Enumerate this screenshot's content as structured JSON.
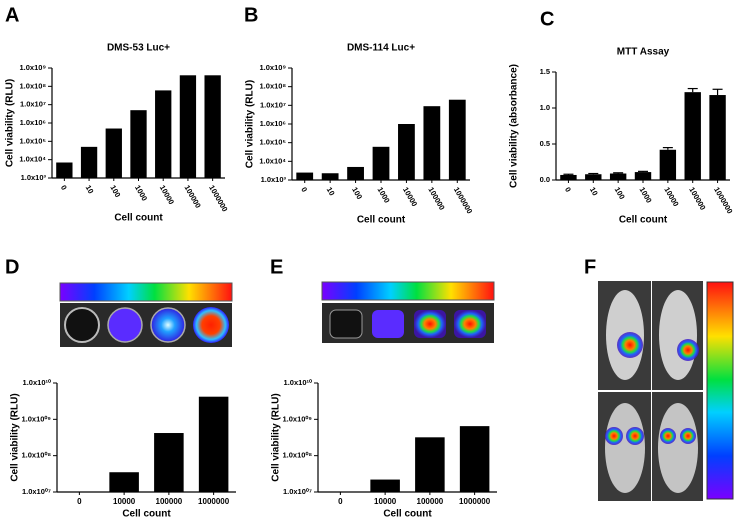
{
  "panel_labels": [
    "A",
    "B",
    "C",
    "D",
    "E",
    "F"
  ],
  "chart_data": [
    {
      "type": "bar",
      "title": "DMS-53 Luc+",
      "x_label": "Cell count",
      "y_label": "Cell viability (RLU)",
      "categories": [
        "0",
        "10",
        "100",
        "1000",
        "10000",
        "100000",
        "1000000"
      ],
      "values": [
        7000,
        50000,
        500000,
        5000000,
        60000000,
        400000000,
        400000000
      ],
      "color": "#000000",
      "log_scale": true,
      "ylim": [
        1000,
        1000000000
      ],
      "yticks": [
        {
          "value": 1000,
          "label": "1.0x10³"
        },
        {
          "value": 10000,
          "label": "1.0x10⁴"
        },
        {
          "value": 100000,
          "label": "1.0x10⁵"
        },
        {
          "value": 1000000,
          "label": "1.0x10⁶"
        },
        {
          "value": 10000000,
          "label": "1.0x10⁷"
        },
        {
          "value": 100000000,
          "label": "1.0x10⁸"
        },
        {
          "value": 1000000000,
          "label": "1.0x10⁹"
        }
      ]
    },
    {
      "type": "bar",
      "title": "DMS-114 Luc+",
      "x_label": "Cell count",
      "y_label": "Cell viability (RLU)",
      "categories": [
        "0",
        "10",
        "100",
        "1000",
        "10000",
        "100000",
        "1000000"
      ],
      "values": [
        2500,
        2300,
        5000,
        60000,
        1000000,
        9000000,
        20000000
      ],
      "color": "#000000",
      "log_scale": true,
      "ylim": [
        1000,
        1000000000
      ],
      "yticks": [
        {
          "value": 1000,
          "label": "1.0x10³"
        },
        {
          "value": 10000,
          "label": "1.0x10⁴"
        },
        {
          "value": 100000,
          "label": "1.0x10⁵"
        },
        {
          "value": 1000000,
          "label": "1.0x10⁶"
        },
        {
          "value": 10000000,
          "label": "1.0x10⁷"
        },
        {
          "value": 100000000,
          "label": "1.0x10⁸"
        },
        {
          "value": 1000000000,
          "label": "1.0x10⁹"
        }
      ]
    },
    {
      "type": "bar",
      "title": "MTT Assay",
      "x_label": "Cell count",
      "y_label": "Cell viability (absorbance)",
      "categories": [
        "0",
        "10",
        "100",
        "1000",
        "10000",
        "100000",
        "1000000"
      ],
      "values": [
        0.07,
        0.08,
        0.09,
        0.11,
        0.42,
        1.22,
        1.18
      ],
      "errors": [
        0.01,
        0.01,
        0.01,
        0.01,
        0.03,
        0.05,
        0.08
      ],
      "color": "#000000",
      "log_scale": false,
      "ylim": [
        0,
        1.5
      ],
      "yticks": [
        {
          "value": 0,
          "label": "0.0"
        },
        0.5,
        {
          "value": 1,
          "label": "1.0"
        },
        1.5
      ]
    },
    {
      "type": "bar",
      "x_label": "Cell count",
      "y_label": "Cell viability (RLU)",
      "categories": [
        "0",
        "10000",
        "100000",
        "1000000"
      ],
      "values": [
        null,
        35000000,
        420000000,
        4200000000
      ],
      "color": "#000000",
      "log_scale": true,
      "ylim": [
        10000000,
        10000000000
      ],
      "yticks": [
        {
          "value": 10000000,
          "label": "1.0x10⁰⁷"
        },
        {
          "value": 100000000,
          "label": "1.0x10⁰⁸"
        },
        {
          "value": 1000000000,
          "label": "1.0x10⁰⁹"
        },
        {
          "value": 10000000000,
          "label": "1.0x10¹⁰"
        }
      ]
    },
    {
      "type": "bar",
      "x_label": "Cell count",
      "y_label": "Cell viability (RLU)",
      "categories": [
        "0",
        "10000",
        "100000",
        "1000000"
      ],
      "values": [
        null,
        22000000,
        320000000,
        650000000
      ],
      "color": "#000000",
      "log_scale": true,
      "ylim": [
        10000000,
        10000000000
      ],
      "yticks": [
        {
          "value": 10000000,
          "label": "1.0x10⁰⁷"
        },
        {
          "value": 100000000,
          "label": "1.0x10⁰⁸"
        },
        {
          "value": 1000000000,
          "label": "1.0x10⁰⁹"
        },
        {
          "value": 10000000000,
          "label": "1.0x10¹⁰"
        }
      ]
    }
  ]
}
